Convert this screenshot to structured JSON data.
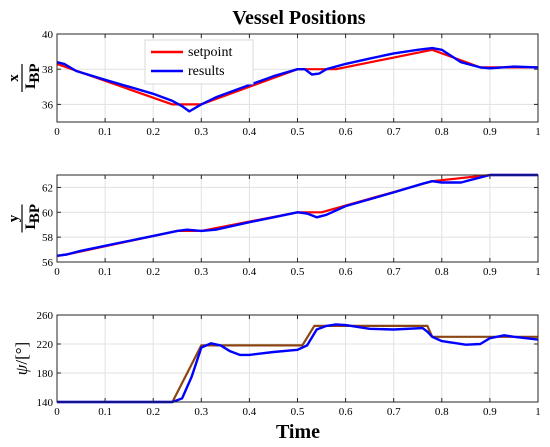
{
  "figure": {
    "title": "Vessel Positions",
    "xlabel": "Time",
    "colors": {
      "setpoint": "#ff0000",
      "results": "#0000ff",
      "setpoint_panel3": "#8b4513"
    }
  },
  "chart_data": [
    {
      "type": "line",
      "ylabel": {
        "num": "x",
        "den": "L",
        "sub": "BP"
      },
      "xlim": [
        0,
        1
      ],
      "ylim": [
        35,
        40
      ],
      "xticks": [
        0,
        0.1,
        0.2,
        0.3,
        0.4,
        0.5,
        0.6,
        0.7,
        0.8,
        0.9,
        1
      ],
      "xtick_labels": [
        "0",
        "0.1",
        "0.2",
        "0.3",
        "0.4",
        "0.5",
        "0.6",
        "0.7",
        "0.8",
        "0.9",
        "1"
      ],
      "yticks": [
        36,
        38,
        40
      ],
      "ytick_labels": [
        "36",
        "38",
        "40"
      ],
      "grid": true,
      "legend": {
        "placement": "top-left",
        "entries": [
          "setpoint",
          "results"
        ]
      },
      "series": [
        {
          "name": "setpoint",
          "color": "#ff0000",
          "x": [
            0,
            0.02,
            0.24,
            0.3,
            0.5,
            0.58,
            0.78,
            0.88,
            1
          ],
          "y": [
            38.3,
            38.1,
            36.0,
            36.0,
            38.0,
            38.0,
            39.1,
            38.1,
            38.1
          ]
        },
        {
          "name": "results",
          "color": "#0000ff",
          "x": [
            0,
            0.015,
            0.04,
            0.1,
            0.2,
            0.24,
            0.26,
            0.275,
            0.3,
            0.33,
            0.37,
            0.4,
            0.45,
            0.5,
            0.515,
            0.53,
            0.545,
            0.56,
            0.6,
            0.65,
            0.7,
            0.75,
            0.78,
            0.8,
            0.84,
            0.88,
            0.9,
            0.95,
            1
          ],
          "y": [
            38.4,
            38.3,
            37.9,
            37.4,
            36.6,
            36.2,
            35.9,
            35.6,
            36.0,
            36.4,
            36.8,
            37.1,
            37.6,
            38.0,
            38.0,
            37.7,
            37.75,
            38.0,
            38.3,
            38.6,
            38.9,
            39.1,
            39.2,
            39.1,
            38.4,
            38.1,
            38.05,
            38.15,
            38.1
          ]
        }
      ]
    },
    {
      "type": "line",
      "ylabel": {
        "num": "y",
        "den": "L",
        "sub": "BP"
      },
      "xlim": [
        0,
        1
      ],
      "ylim": [
        56,
        63
      ],
      "xticks": [
        0,
        0.1,
        0.2,
        0.3,
        0.4,
        0.5,
        0.6,
        0.7,
        0.8,
        0.9,
        1
      ],
      "xtick_labels": [
        "0",
        "0.1",
        "0.2",
        "0.3",
        "0.4",
        "0.5",
        "0.6",
        "0.7",
        "0.8",
        "0.9",
        "1"
      ],
      "yticks": [
        56,
        58,
        60,
        62
      ],
      "ytick_labels": [
        "56",
        "58",
        "60",
        "62"
      ],
      "grid": true,
      "series": [
        {
          "name": "setpoint",
          "color": "#ff0000",
          "x": [
            0,
            0.02,
            0.25,
            0.3,
            0.5,
            0.55,
            0.78,
            0.9,
            1
          ],
          "y": [
            56.5,
            56.6,
            58.5,
            58.5,
            60.0,
            60.0,
            62.5,
            63.0,
            63.0
          ]
        },
        {
          "name": "results",
          "color": "#0000ff",
          "x": [
            0,
            0.02,
            0.05,
            0.1,
            0.2,
            0.25,
            0.27,
            0.3,
            0.33,
            0.4,
            0.45,
            0.5,
            0.52,
            0.54,
            0.56,
            0.6,
            0.7,
            0.76,
            0.78,
            0.8,
            0.84,
            0.87,
            0.9,
            0.95,
            1
          ],
          "y": [
            56.5,
            56.6,
            56.9,
            57.3,
            58.1,
            58.5,
            58.6,
            58.5,
            58.6,
            59.2,
            59.6,
            60.0,
            59.9,
            59.6,
            59.8,
            60.5,
            61.6,
            62.3,
            62.5,
            62.4,
            62.4,
            62.7,
            63.0,
            63.0,
            63.0
          ]
        }
      ]
    },
    {
      "type": "line",
      "ylabel": {
        "sym": "ψ",
        "unit": "/[°]"
      },
      "xlim": [
        0,
        1
      ],
      "ylim": [
        140,
        260
      ],
      "xticks": [
        0,
        0.1,
        0.2,
        0.3,
        0.4,
        0.5,
        0.6,
        0.7,
        0.8,
        0.9,
        1
      ],
      "xtick_labels": [
        "0",
        "0.1",
        "0.2",
        "0.3",
        "0.4",
        "0.5",
        "0.6",
        "0.7",
        "0.8",
        "0.9",
        "1"
      ],
      "yticks": [
        140,
        180,
        220,
        260
      ],
      "ytick_labels": [
        "140",
        "180",
        "220",
        "260"
      ],
      "grid": true,
      "series": [
        {
          "name": "setpoint",
          "color": "#8b4513",
          "x": [
            0,
            0.24,
            0.3,
            0.51,
            0.535,
            0.77,
            0.78,
            1
          ],
          "y": [
            140,
            140,
            218,
            218,
            245,
            245,
            230,
            230
          ]
        },
        {
          "name": "results",
          "color": "#0000ff",
          "x": [
            0,
            0.24,
            0.26,
            0.28,
            0.3,
            0.32,
            0.34,
            0.36,
            0.38,
            0.4,
            0.45,
            0.5,
            0.52,
            0.54,
            0.56,
            0.58,
            0.6,
            0.65,
            0.7,
            0.76,
            0.77,
            0.78,
            0.8,
            0.85,
            0.88,
            0.9,
            0.93,
            0.95,
            1
          ],
          "y": [
            140,
            140,
            145,
            175,
            215,
            221,
            218,
            210,
            205,
            205,
            209,
            212,
            218,
            240,
            245,
            247,
            246,
            241,
            240,
            242,
            237,
            230,
            224,
            219,
            220,
            228,
            232,
            230,
            226
          ]
        }
      ]
    }
  ]
}
